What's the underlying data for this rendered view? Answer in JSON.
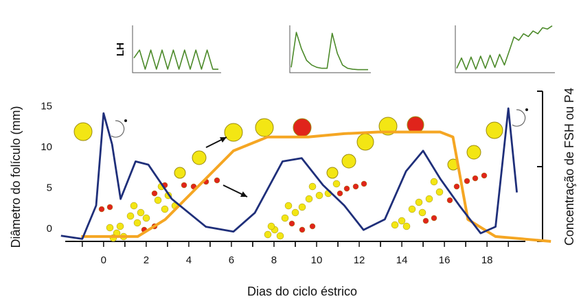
{
  "chart_data": [
    {
      "type": "line",
      "xlabel": "Dias do ciclo éstrico",
      "ylabel": "Diâmetro do folículo (mm)",
      "y2label": "Concentração de FSH ou P4",
      "xlim": [
        -1.8,
        19.8
      ],
      "xticks": [
        0,
        2,
        4,
        6,
        8,
        10,
        12,
        14,
        16,
        18
      ],
      "ylim": [
        -1.5,
        16.9
      ],
      "yticks": [
        0,
        5,
        10,
        15
      ],
      "series": [
        {
          "color": "#1f2f7a",
          "x": [
            -2,
            -1,
            -0.35,
            0,
            0.4,
            0.8,
            1.5,
            2.1,
            3.2,
            4.8,
            6.1,
            7.1,
            8.4,
            9.3,
            10.3,
            11.3,
            12.2,
            13.2,
            14.2,
            15,
            15.8,
            16.7,
            17.7,
            18.4,
            19,
            19.4
          ],
          "values": [
            -0.8,
            -1.2,
            2.9,
            14.2,
            10.4,
            3.7,
            8.3,
            7.9,
            3.7,
            0.3,
            -0.3,
            2.0,
            8.3,
            8.7,
            5.4,
            2.9,
            -0.1,
            1.2,
            7.1,
            9.6,
            6.2,
            2.9,
            -0.5,
            0.3,
            14.8,
            4.5
          ]
        },
        {
          "color": "#f5a623",
          "x": [
            -1.05,
            1.6,
            2.9,
            4.5,
            6.1,
            7.7,
            9.6,
            11.3,
            12.9,
            15.8,
            16.4,
            17.1,
            18.4,
            21
          ],
          "values": [
            -0.9,
            -0.9,
            1.2,
            5.4,
            9.6,
            11.3,
            11.3,
            11.7,
            11.9,
            11.9,
            11.3,
            1.2,
            -0.9,
            -1.5
          ]
        }
      ]
    },
    {
      "type": "line",
      "ylabel": "LH",
      "ylim": [
        0,
        10
      ],
      "color": "#4c8a2a",
      "values": [
        3,
        4.7,
        0.6,
        4.7,
        0.6,
        4.7,
        0.6,
        4.7,
        0.6,
        4.7,
        0.6,
        4.7,
        0.6,
        4.7,
        0.6,
        0.6
      ]
    },
    {
      "type": "line",
      "ylim": [
        0,
        10
      ],
      "color": "#4c8a2a",
      "values": [
        1,
        8.5,
        5,
        2.5,
        1.5,
        1,
        0.8,
        0.8,
        8.3,
        4,
        1.5,
        0.8,
        0.6,
        0.5,
        0.5,
        0.5
      ]
    },
    {
      "type": "line",
      "ylim": [
        0,
        10
      ],
      "color": "#4c8a2a",
      "values": [
        0.8,
        3,
        0.5,
        3.2,
        0.6,
        3.4,
        0.8,
        3.6,
        1,
        3.8,
        1.5,
        4.5,
        7.5,
        6.8,
        8.2,
        7.6,
        8.8,
        8.2,
        9.5,
        9.2,
        9.9
      ]
    }
  ]
}
